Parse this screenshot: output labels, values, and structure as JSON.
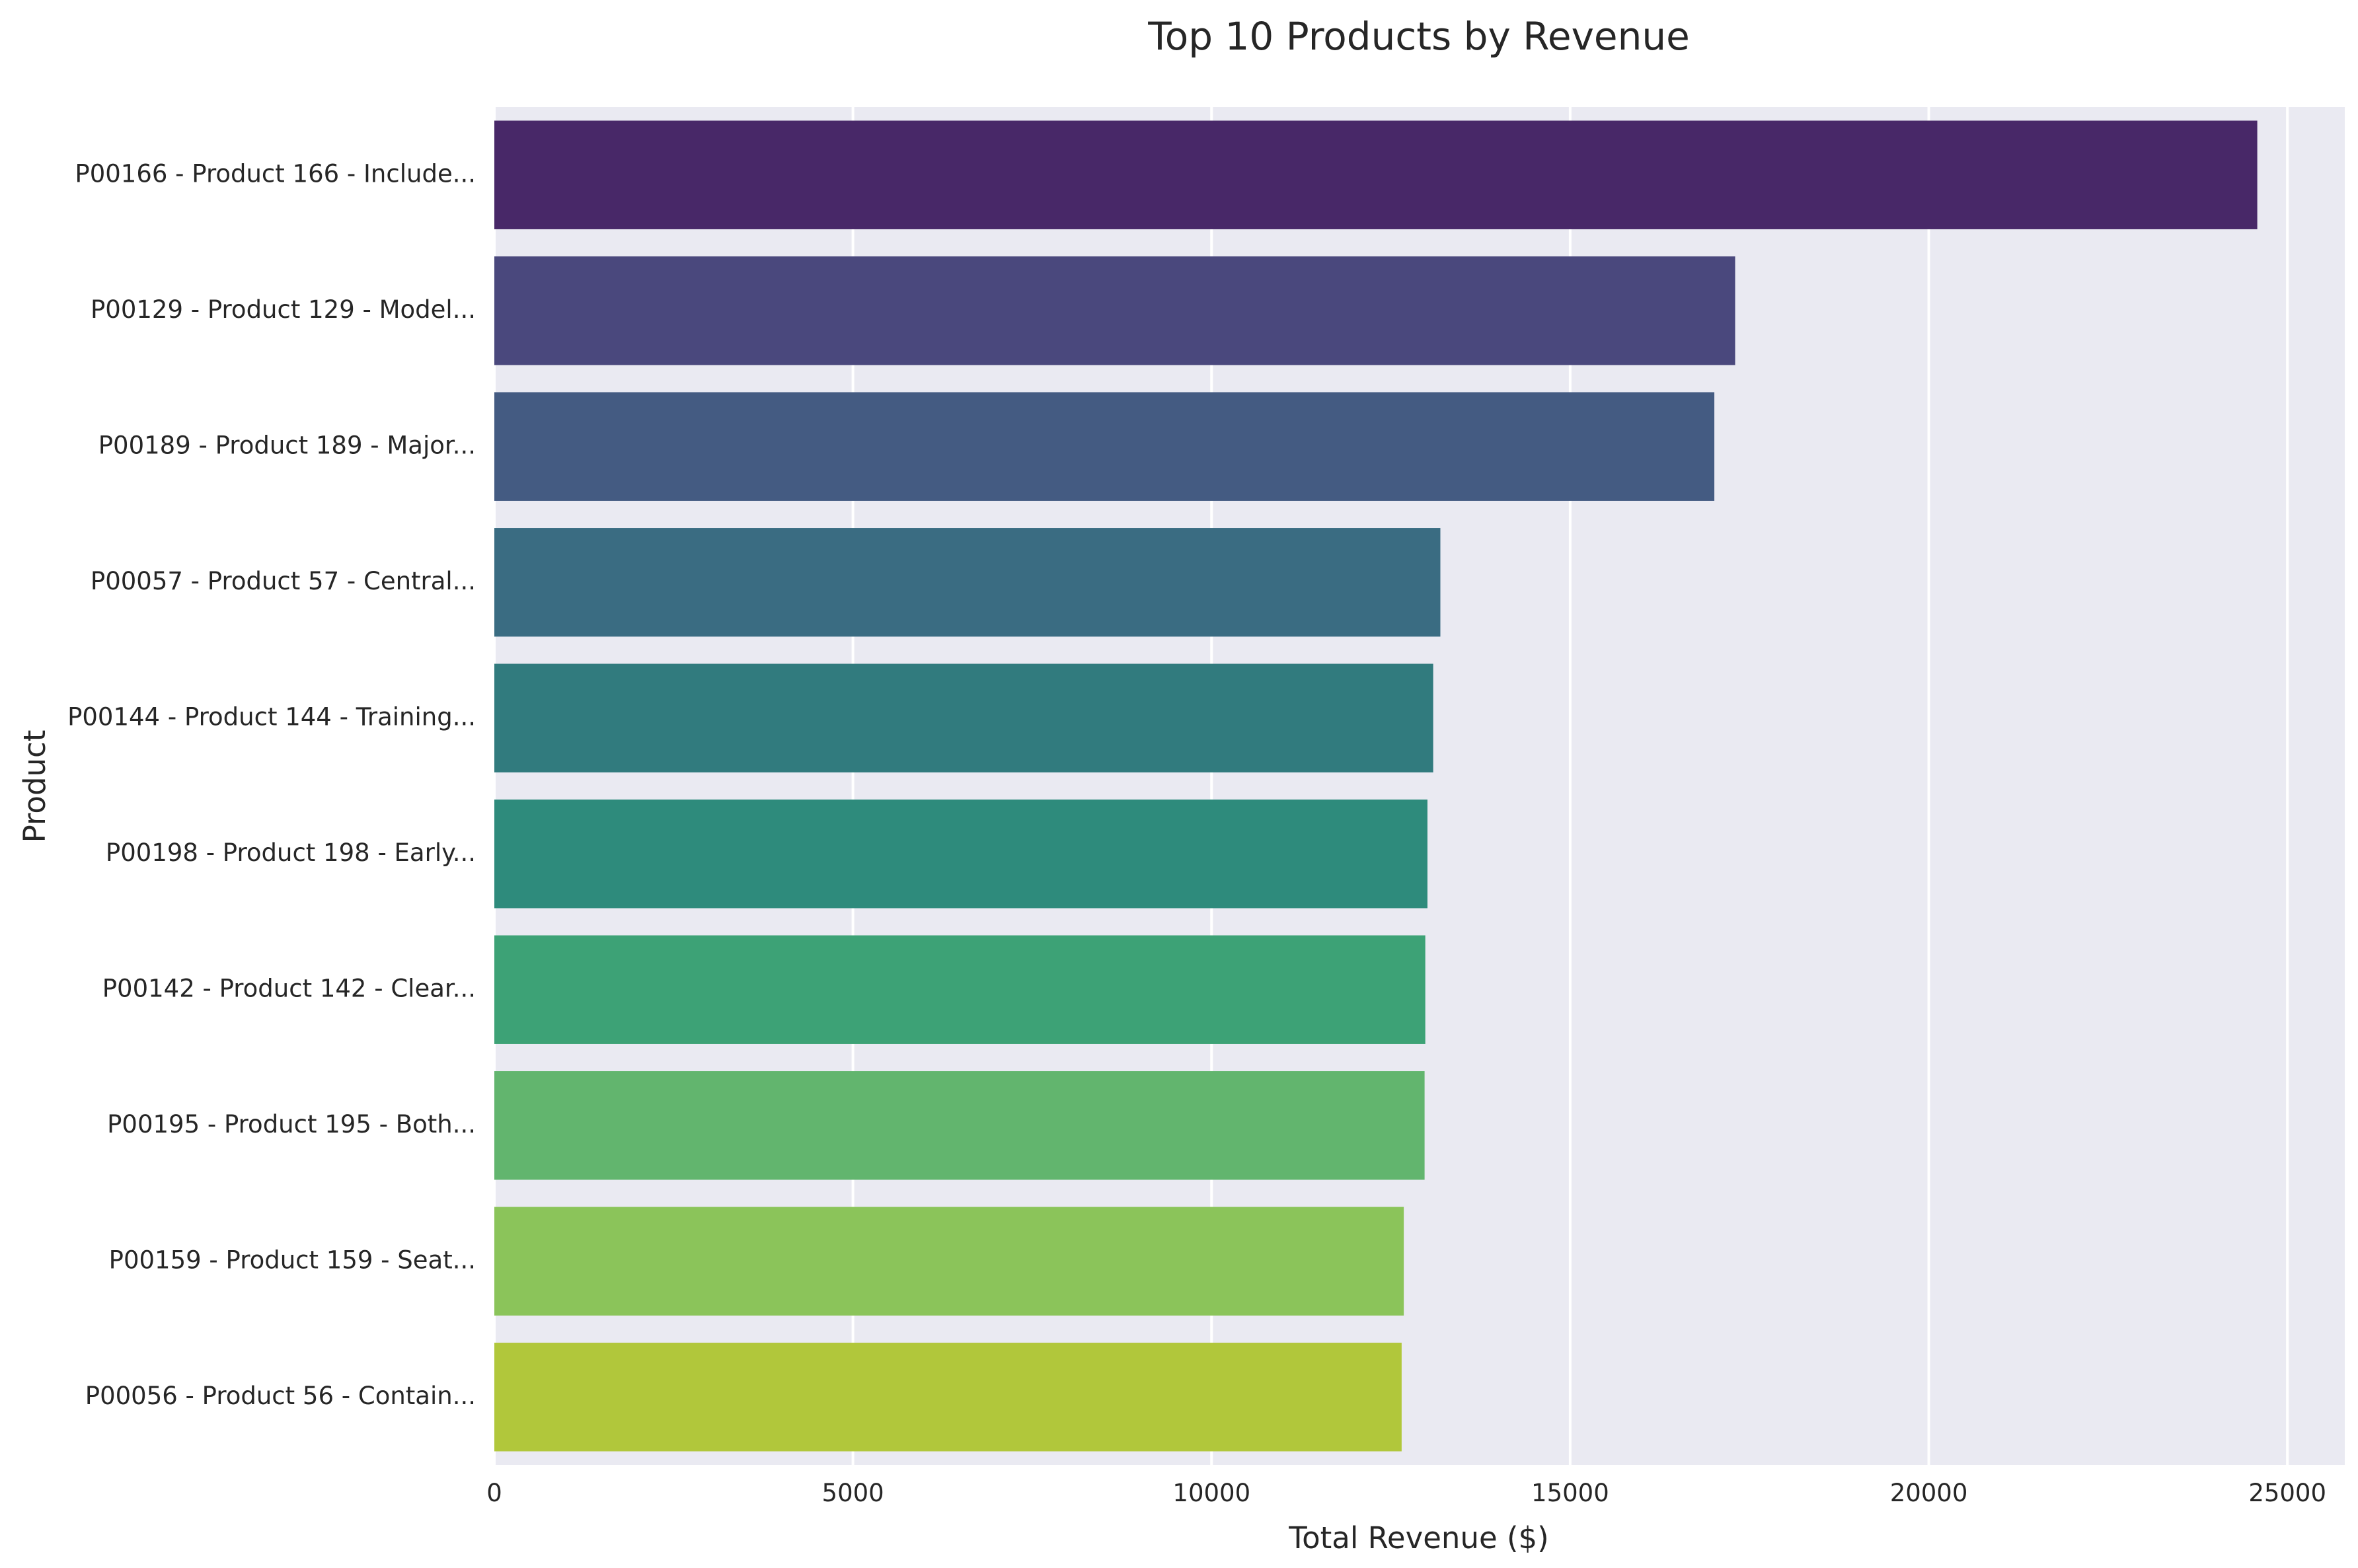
{
  "chart_data": {
    "type": "bar",
    "orientation": "horizontal",
    "title": "Top 10 Products by Revenue",
    "xlabel": "Total Revenue ($)",
    "ylabel": "Product",
    "categories": [
      "P00166 - Product 166 - Include...",
      "P00129 - Product 129 - Model...",
      "P00189 - Product 189 - Major...",
      "P00057 - Product 57 - Central...",
      "P00144 - Product 144 - Training...",
      "P00198 - Product 198 - Early...",
      "P00142 - Product 142 - Clear...",
      "P00195 - Product 195 - Both...",
      "P00159 - Product 159 - Seat...",
      "P00056 - Product 56 - Contain..."
    ],
    "values": [
      24580,
      17300,
      17010,
      13190,
      13090,
      13010,
      12980,
      12970,
      12680,
      12650
    ],
    "xlim": [
      0,
      25800
    ],
    "xticks": [
      0,
      5000,
      10000,
      15000,
      20000,
      25000
    ],
    "colors": [
      "#482868",
      "#4a487d",
      "#445b82",
      "#3a6c82",
      "#317b7e",
      "#2e8b7c",
      "#3da276",
      "#62b56e",
      "#8bc45a",
      "#b1c73b"
    ],
    "grid": true,
    "plot_background": "#eaeaf2",
    "legend": "none"
  }
}
